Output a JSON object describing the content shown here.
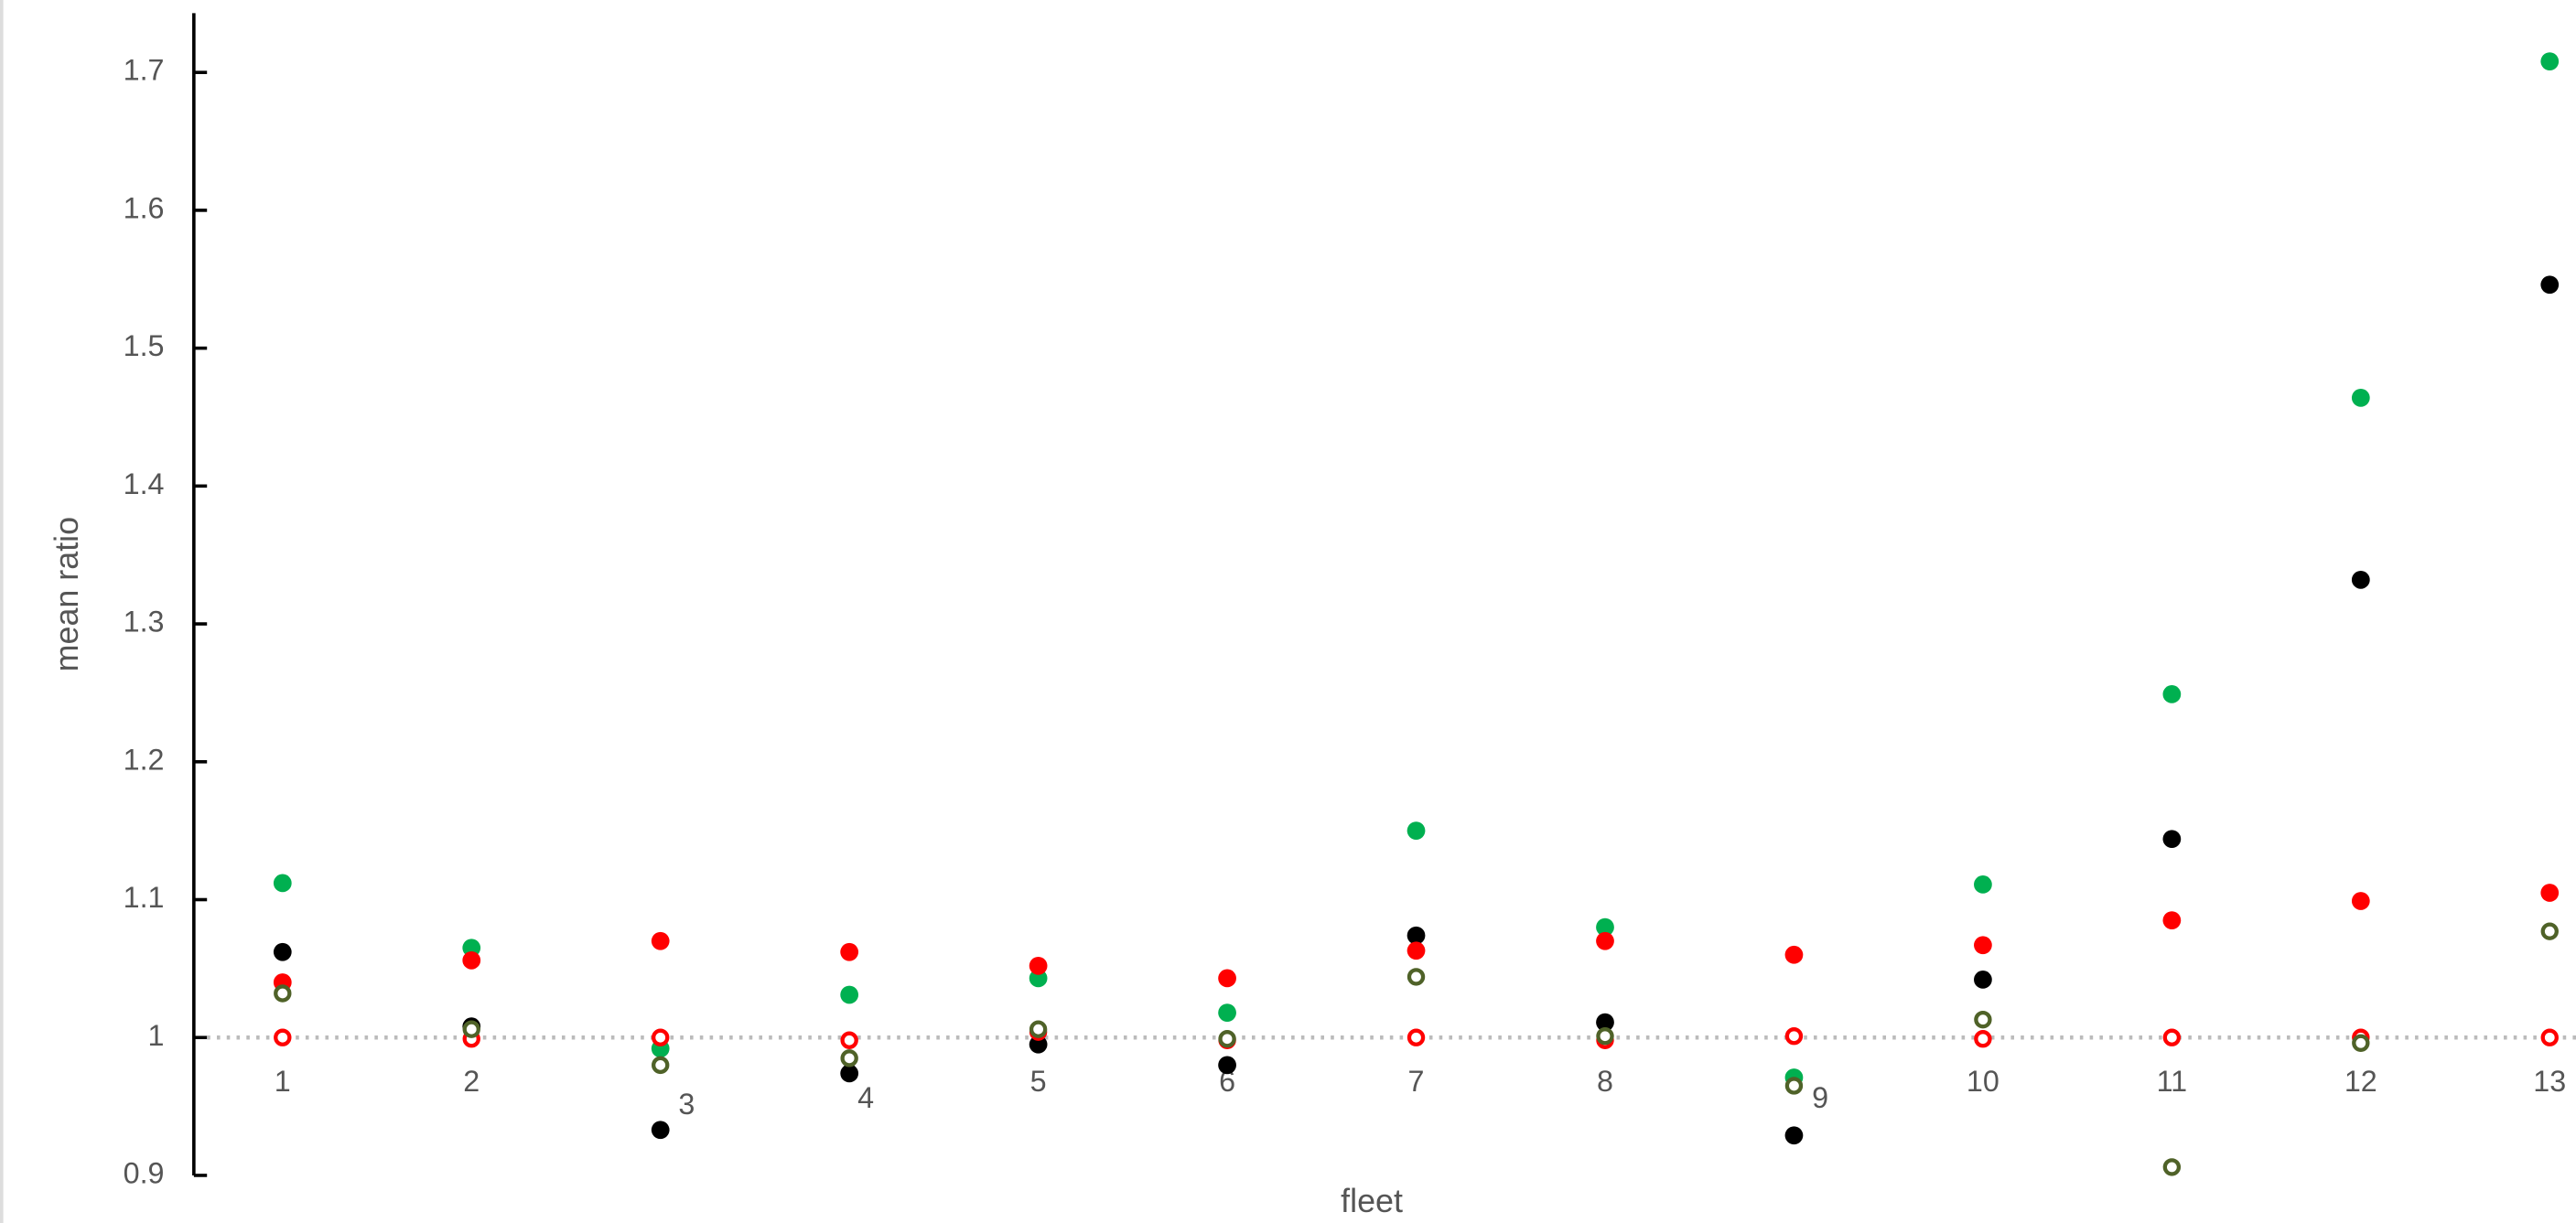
{
  "chart_data": {
    "type": "scatter",
    "x_label": "fleet",
    "y_label": "mean ratio",
    "categories": [
      "1",
      "2",
      "3",
      "4",
      "5",
      "6",
      "7",
      "8",
      "9",
      "10",
      "11",
      "12",
      "13"
    ],
    "ylim": [
      0.9,
      1.743
    ],
    "yticks": [
      0.9,
      1,
      1.1,
      1.2,
      1.3,
      1.4,
      1.5,
      1.6,
      1.7
    ],
    "reference_line": 1,
    "series": [
      {
        "color": "#00b050",
        "marker": "filled",
        "values": [
          1.112,
          1.065,
          0.992,
          1.031,
          1.043,
          1.018,
          1.15,
          1.08,
          0.971,
          1.111,
          1.249,
          1.464,
          1.708
        ]
      },
      {
        "color": "#000000",
        "marker": "filled",
        "values": [
          1.062,
          1.008,
          0.933,
          0.974,
          0.995,
          0.98,
          1.074,
          1.011,
          0.929,
          1.042,
          1.144,
          1.332,
          1.546
        ]
      },
      {
        "color": "#ff0000",
        "marker": "filled",
        "values": [
          1.04,
          1.056,
          1.07,
          1.062,
          1.052,
          1.043,
          1.063,
          1.07,
          1.06,
          1.067,
          1.085,
          1.099,
          1.105
        ]
      },
      {
        "color": "#ff0000",
        "marker": "open",
        "values": [
          1.0,
          0.999,
          1.0,
          0.998,
          1.004,
          0.998,
          1.0,
          0.998,
          1.001,
          0.999,
          1.0,
          1.0,
          1.0
        ]
      },
      {
        "color": "#4f6228",
        "marker": "open",
        "values": [
          1.032,
          1.006,
          0.98,
          0.985,
          1.006,
          0.999,
          1.044,
          1.001,
          0.965,
          1.013,
          0.906,
          0.996,
          1.077
        ]
      }
    ]
  }
}
